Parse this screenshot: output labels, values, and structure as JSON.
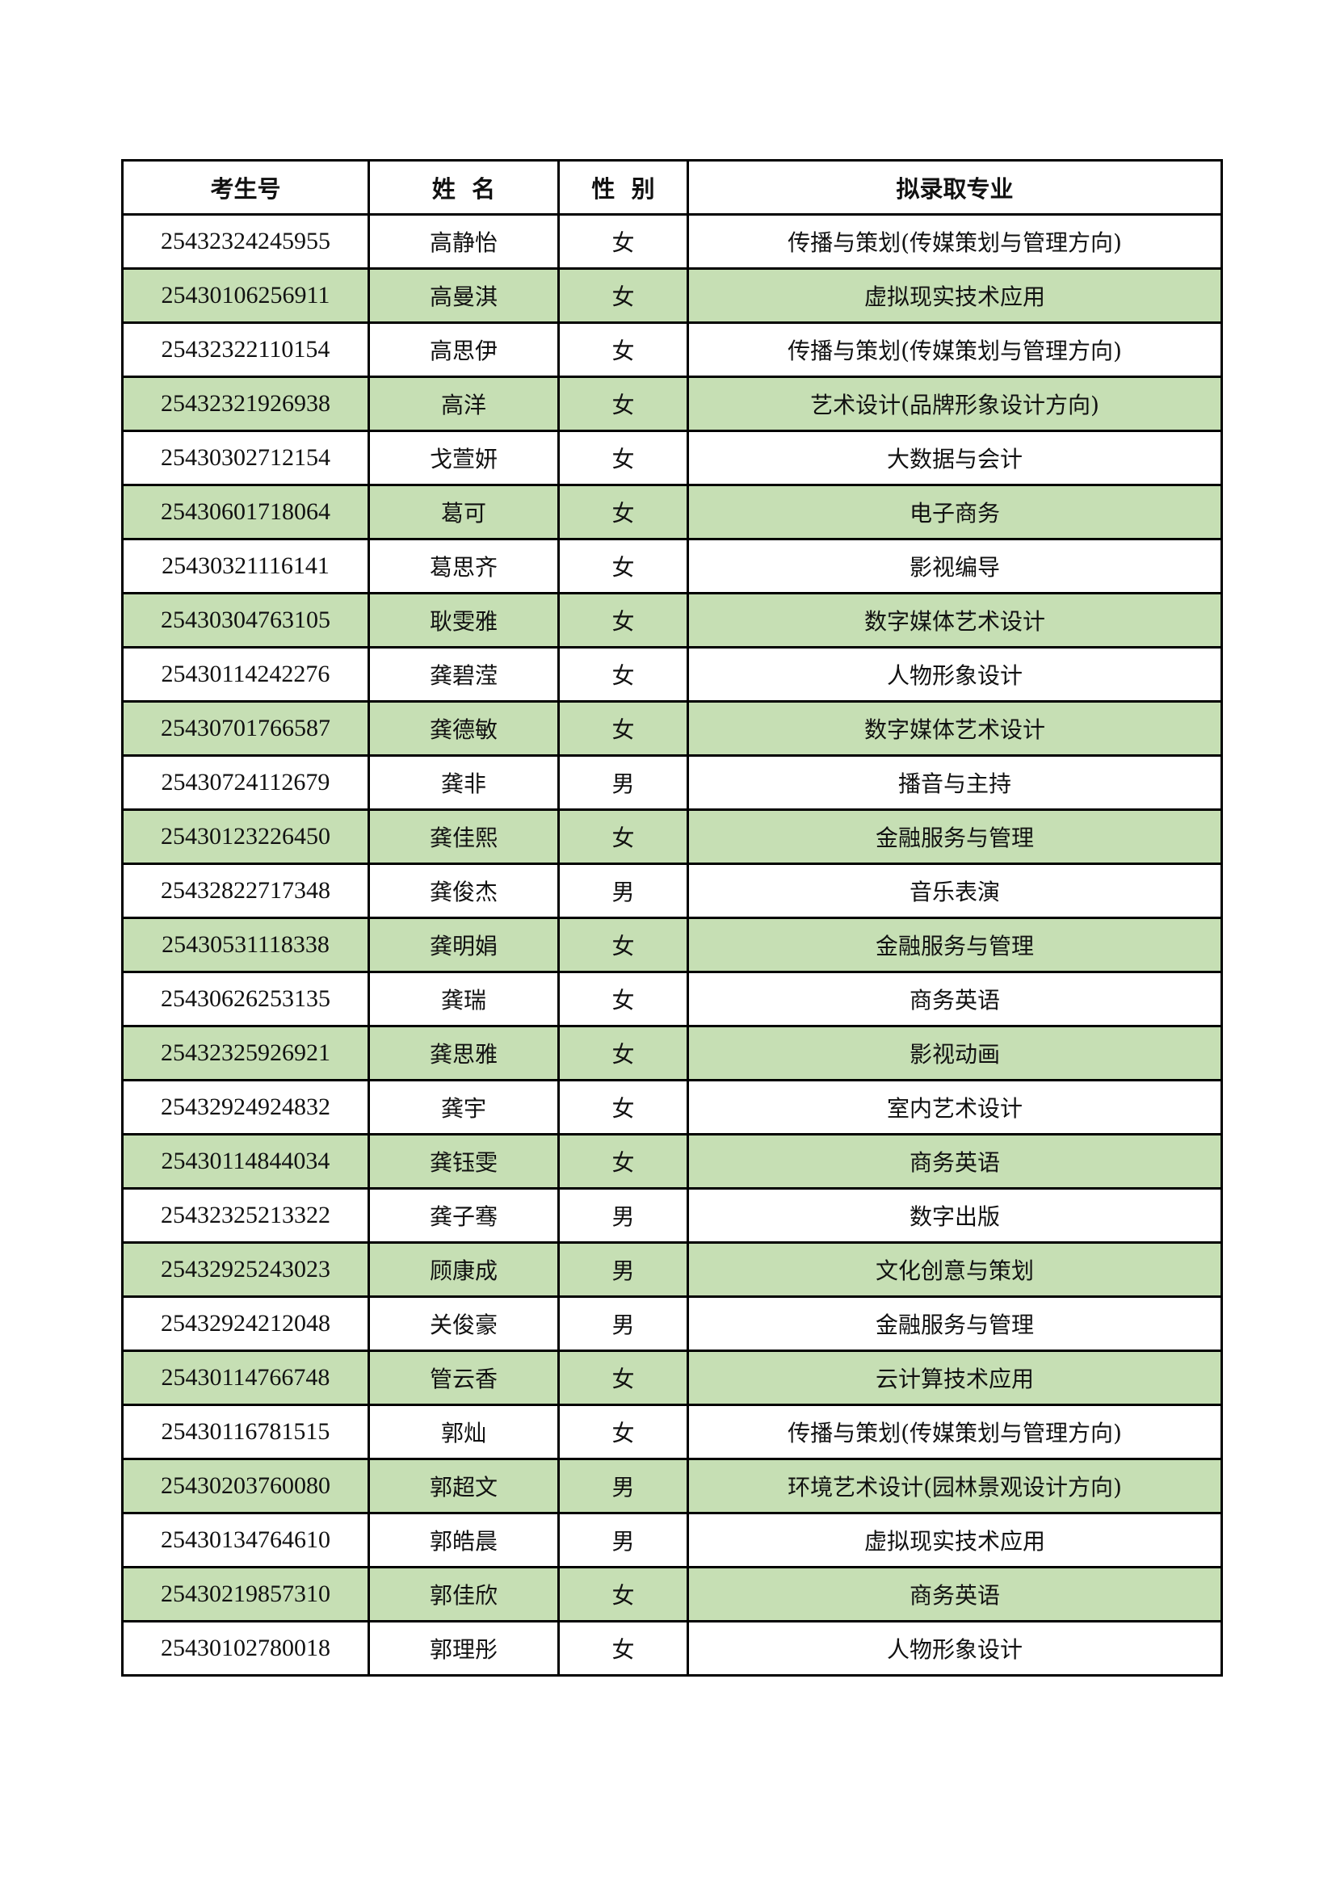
{
  "headers": [
    "考生号",
    "姓  名",
    "性  别",
    "拟录取专业"
  ],
  "rows": [
    [
      "25432324245955",
      "高静怡",
      "女",
      "传播与策划(传媒策划与管理方向)"
    ],
    [
      "25430106256911",
      "高曼淇",
      "女",
      "虚拟现实技术应用"
    ],
    [
      "25432322110154",
      "高思伊",
      "女",
      "传播与策划(传媒策划与管理方向)"
    ],
    [
      "25432321926938",
      "高洋",
      "女",
      "艺术设计(品牌形象设计方向)"
    ],
    [
      "25430302712154",
      "戈萱妍",
      "女",
      "大数据与会计"
    ],
    [
      "25430601718064",
      "葛可",
      "女",
      "电子商务"
    ],
    [
      "25430321116141",
      "葛思齐",
      "女",
      "影视编导"
    ],
    [
      "25430304763105",
      "耿雯雅",
      "女",
      "数字媒体艺术设计"
    ],
    [
      "25430114242276",
      "龚碧滢",
      "女",
      "人物形象设计"
    ],
    [
      "25430701766587",
      "龚德敏",
      "女",
      "数字媒体艺术设计"
    ],
    [
      "25430724112679",
      "龚非",
      "男",
      "播音与主持"
    ],
    [
      "25430123226450",
      "龚佳熙",
      "女",
      "金融服务与管理"
    ],
    [
      "25432822717348",
      "龚俊杰",
      "男",
      "音乐表演"
    ],
    [
      "25430531118338",
      "龚明娟",
      "女",
      "金融服务与管理"
    ],
    [
      "25430626253135",
      "龚瑞",
      "女",
      "商务英语"
    ],
    [
      "25432325926921",
      "龚思雅",
      "女",
      "影视动画"
    ],
    [
      "25432924924832",
      "龚宇",
      "女",
      "室内艺术设计"
    ],
    [
      "25430114844034",
      "龚钰雯",
      "女",
      "商务英语"
    ],
    [
      "25432325213322",
      "龚子骞",
      "男",
      "数字出版"
    ],
    [
      "25432925243023",
      "顾康成",
      "男",
      "文化创意与策划"
    ],
    [
      "25432924212048",
      "关俊豪",
      "男",
      "金融服务与管理"
    ],
    [
      "25430114766748",
      "管云香",
      "女",
      "云计算技术应用"
    ],
    [
      "25430116781515",
      "郭灿",
      "女",
      "传播与策划(传媒策划与管理方向)"
    ],
    [
      "25430203760080",
      "郭超文",
      "男",
      "环境艺术设计(园林景观设计方向)"
    ],
    [
      "25430134764610",
      "郭皓晨",
      "男",
      "虚拟现实技术应用"
    ],
    [
      "25430219857310",
      "郭佳欣",
      "女",
      "商务英语"
    ],
    [
      "25430102780018",
      "郭理彤",
      "女",
      "人物形象设计"
    ]
  ],
  "colors": {
    "stripe": "#c6dfb4",
    "border": "#000000"
  }
}
